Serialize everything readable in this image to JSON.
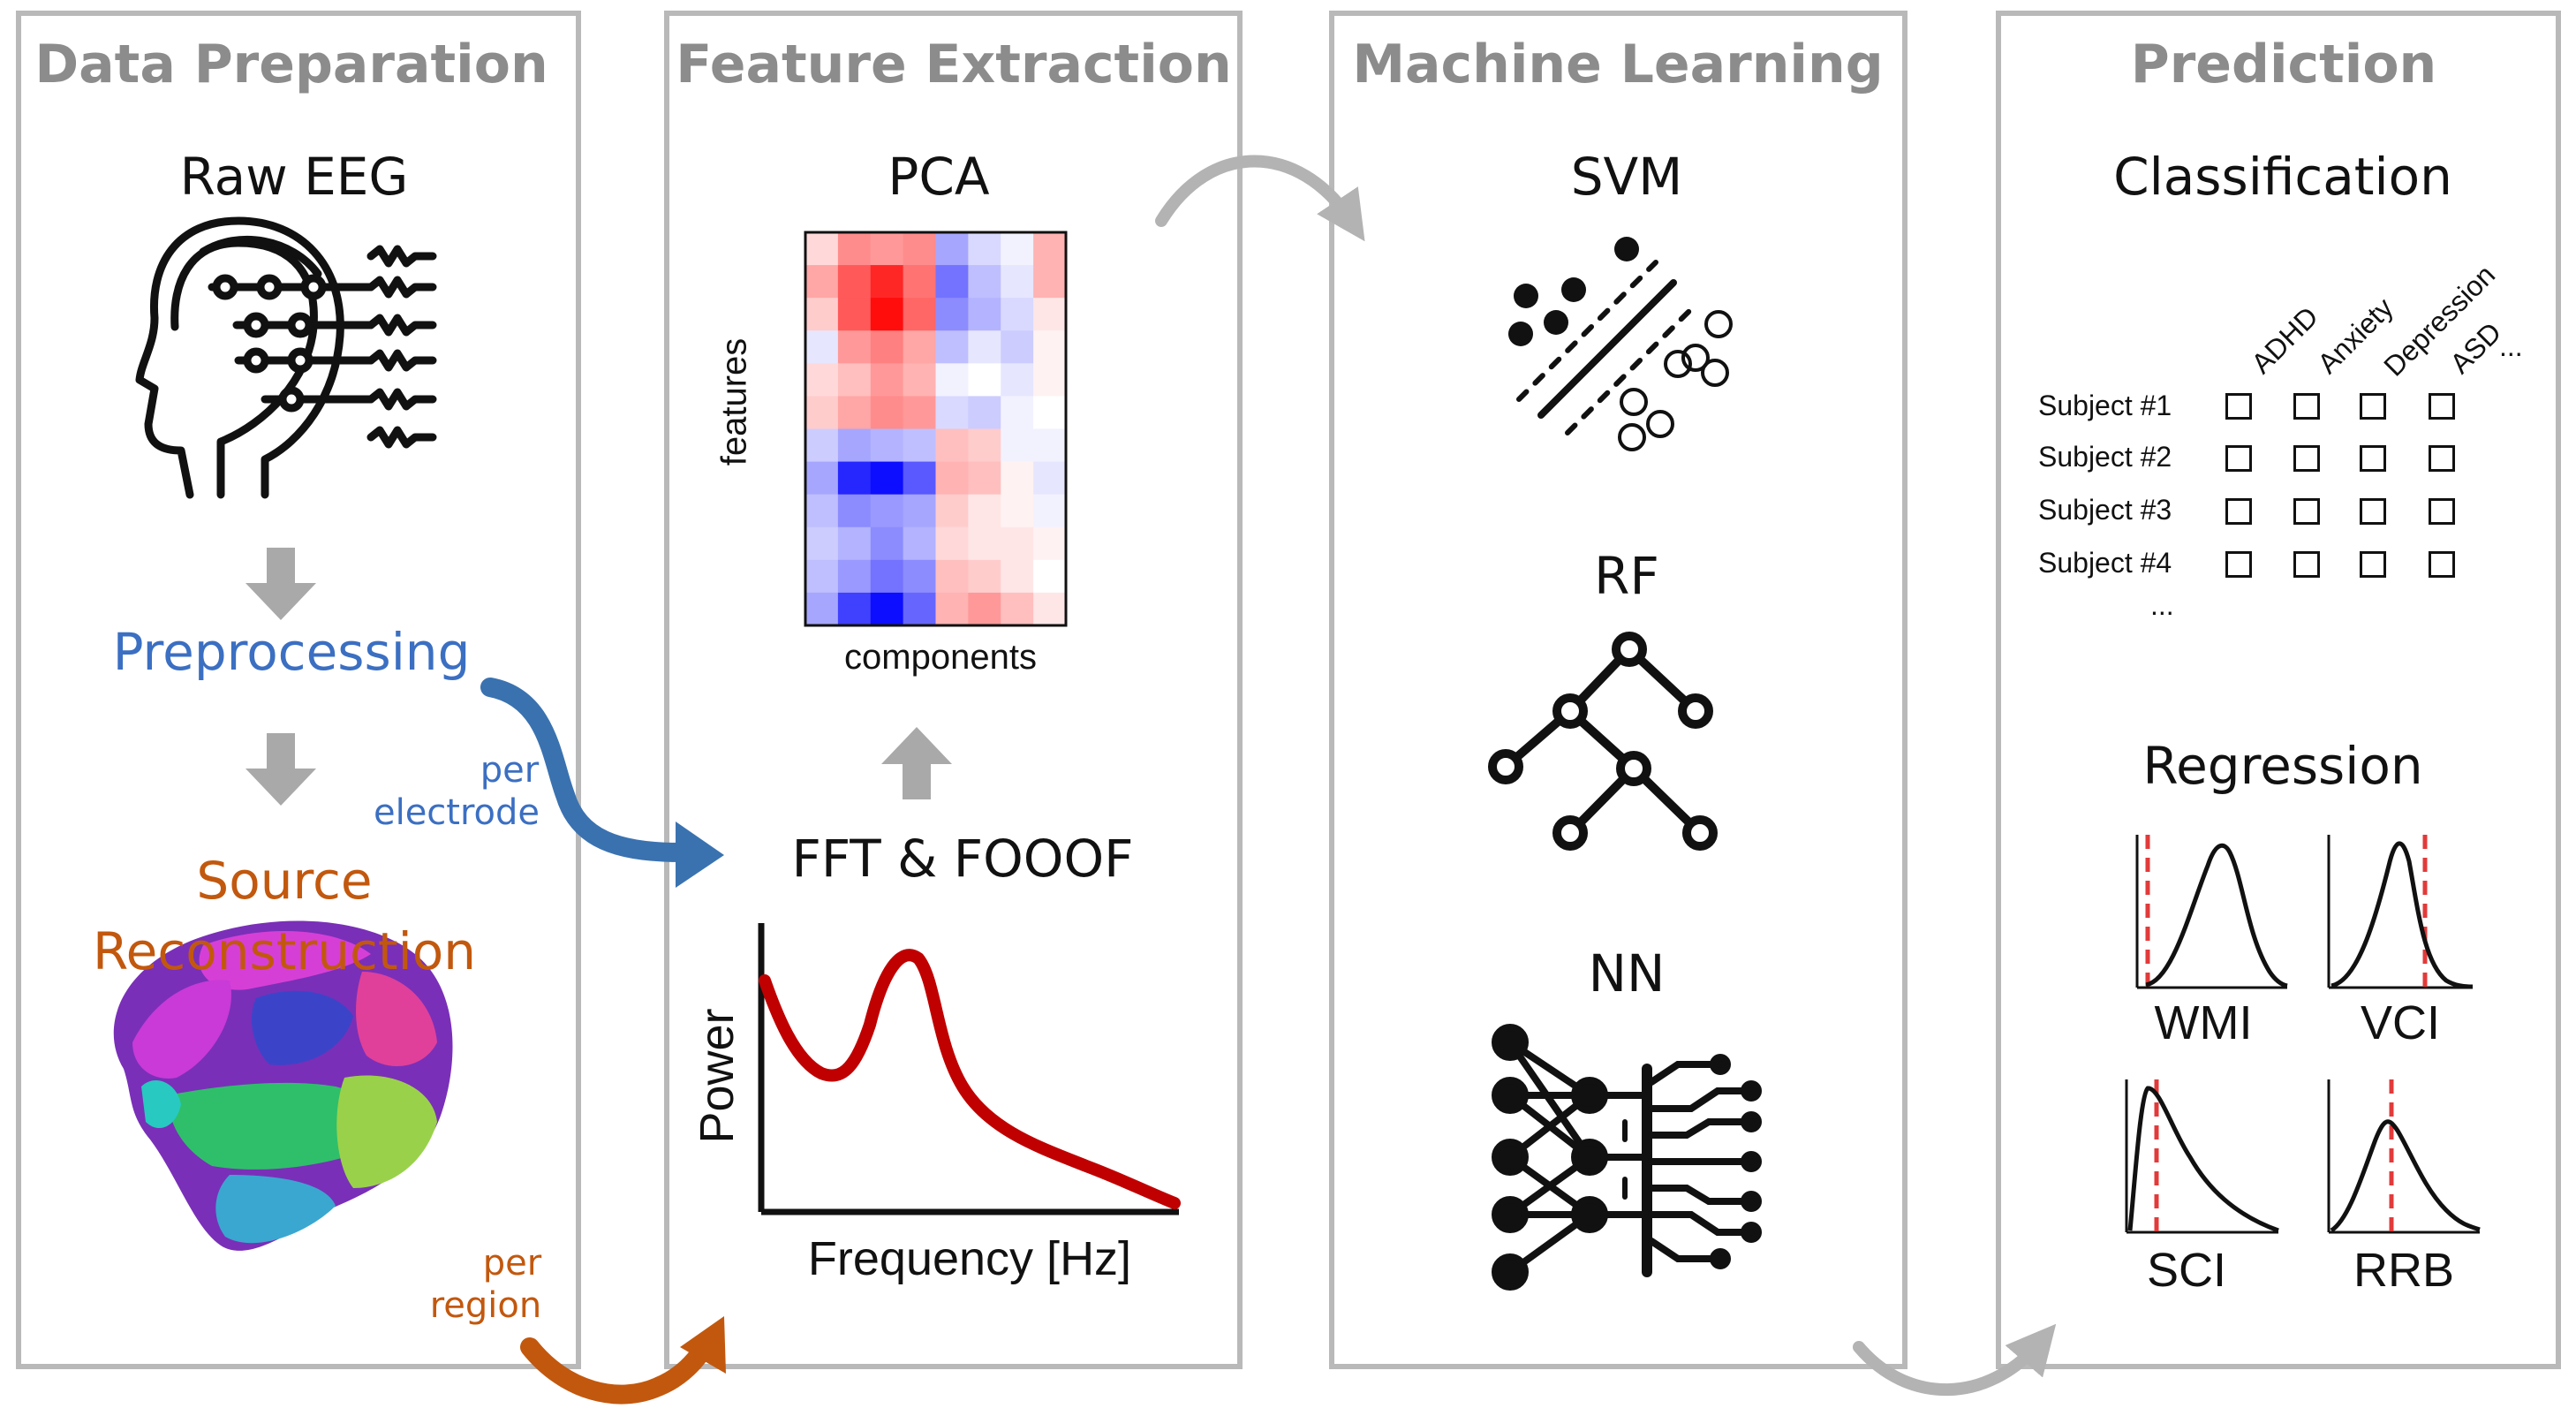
{
  "panels": {
    "data_preparation": {
      "title": "Data Preparation",
      "raw_eeg": "Raw EEG",
      "preprocessing": "Preprocessing",
      "source_reconstruction_line1": "Source",
      "source_reconstruction_line2": "Reconstruction",
      "per_electrode_line1": "per",
      "per_electrode_line2": "electrode",
      "per_region_line1": "per",
      "per_region_line2": "region"
    },
    "feature_extraction": {
      "title": "Feature Extraction",
      "pca": "PCA",
      "features_axis": "features",
      "components_axis": "components",
      "fft_fooof": "FFT & FOOOF",
      "power_axis": "Power",
      "frequency_axis": "Frequency [Hz]"
    },
    "machine_learning": {
      "title": "Machine Learning",
      "svm": "SVM",
      "rf": "RF",
      "nn": "NN"
    },
    "prediction": {
      "title": "Prediction",
      "classification": "Classification",
      "diagnoses": [
        "ADHD",
        "Anxiety",
        "Depression",
        "ASD"
      ],
      "diagnoses_more": "...",
      "subjects": [
        "Subject #1",
        "Subject #2",
        "Subject #3",
        "Subject #4"
      ],
      "subjects_more": "...",
      "regression": "Regression",
      "regression_targets": [
        "WMI",
        "VCI",
        "SCI",
        "RRB"
      ]
    }
  },
  "colors": {
    "panel_border": "#b9b9b9",
    "title_gray": "#8c8c8c",
    "preprocessing_blue": "#3b6fc2",
    "source_orange": "#c2580e",
    "spectrum_red": "#c00000",
    "regression_dash_red": "#e23a3a",
    "flow_arrow_gray": "#b3b3b3"
  },
  "icons": [
    "head-eeg-icon",
    "brain-atlas-icon",
    "svm-icon",
    "random-forest-icon",
    "neural-network-icon"
  ],
  "pca_heatmap": {
    "rows": 12,
    "cols": 8,
    "values": [
      [
        0.15,
        0.45,
        0.4,
        0.45,
        -0.35,
        -0.15,
        -0.05,
        0.3
      ],
      [
        0.35,
        0.65,
        0.85,
        0.55,
        -0.55,
        -0.25,
        -0.1,
        0.3
      ],
      [
        0.2,
        0.65,
        0.95,
        0.6,
        -0.45,
        -0.3,
        -0.15,
        0.1
      ],
      [
        -0.1,
        0.4,
        0.5,
        0.35,
        -0.25,
        -0.1,
        -0.2,
        0.05
      ],
      [
        0.15,
        0.25,
        0.4,
        0.3,
        -0.05,
        0.0,
        -0.1,
        0.05
      ],
      [
        0.2,
        0.35,
        0.45,
        0.4,
        -0.15,
        -0.2,
        -0.05,
        0.0
      ],
      [
        -0.2,
        -0.35,
        -0.3,
        -0.25,
        0.25,
        0.2,
        -0.05,
        -0.05
      ],
      [
        -0.35,
        -0.85,
        -0.95,
        -0.65,
        0.3,
        0.25,
        0.05,
        -0.1
      ],
      [
        -0.25,
        -0.45,
        -0.4,
        -0.35,
        0.2,
        0.1,
        0.05,
        -0.05
      ],
      [
        -0.2,
        -0.3,
        -0.45,
        -0.3,
        0.15,
        0.1,
        0.1,
        0.05
      ],
      [
        -0.25,
        -0.4,
        -0.55,
        -0.45,
        0.25,
        0.2,
        0.1,
        0.0
      ],
      [
        -0.35,
        -0.75,
        -0.95,
        -0.6,
        0.3,
        0.4,
        0.25,
        0.1
      ]
    ]
  }
}
